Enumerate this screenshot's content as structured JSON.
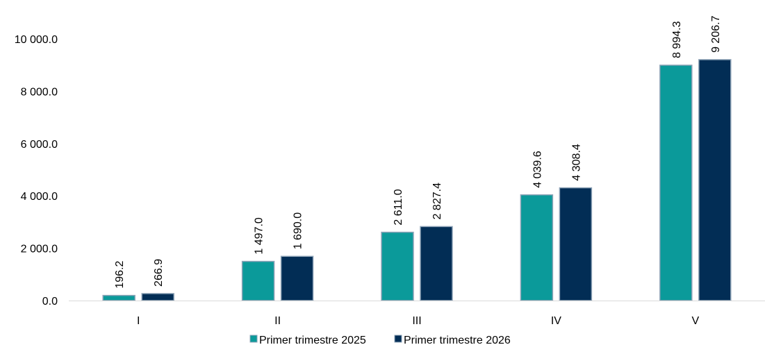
{
  "chart_data": {
    "type": "bar",
    "title": "",
    "xlabel": "",
    "ylabel": "",
    "categories": [
      "I",
      "II",
      "III",
      "IV",
      "V"
    ],
    "series": [
      {
        "name": "Primer trimestre 2025",
        "color": "#0b9a9a",
        "values": [
          196.2,
          1497.0,
          2611.0,
          4039.6,
          8994.3
        ],
        "labels": [
          "196.2",
          "1 497.0",
          "2 611.0",
          "4 039.6",
          "8 994.3"
        ]
      },
      {
        "name": "Primer trimestre 2026",
        "color": "#022d55",
        "values": [
          266.9,
          1690.0,
          2827.4,
          4308.4,
          9206.7
        ],
        "labels": [
          "266.9",
          "1 690.0",
          "2 827.4",
          "4 308.4",
          "9 206.7"
        ]
      }
    ],
    "ylim": [
      0,
      10000
    ],
    "yticks": [
      0,
      2000,
      4000,
      6000,
      8000,
      10000
    ],
    "ytick_labels": [
      "0.0",
      "2 000.0",
      "4 000.0",
      "6 000.0",
      "8 000.0",
      "10 000.0"
    ],
    "grid": false,
    "legend_position": "bottom-center",
    "bar_outline_color": "#8ea3b7",
    "axis_color": "#d9d9d9"
  }
}
